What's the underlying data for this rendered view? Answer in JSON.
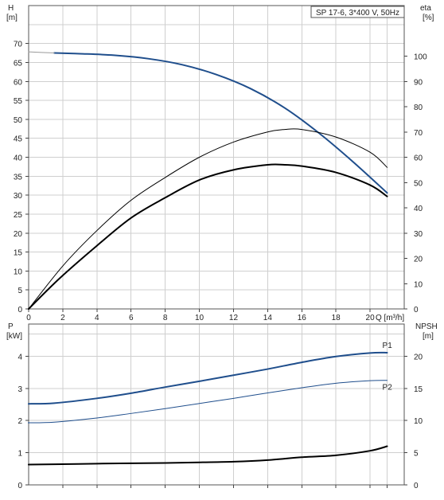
{
  "chart_data": [
    {
      "type": "line",
      "title": "SP 17-6, 3*400 V, 50Hz",
      "xlabel": "Q [m³/h]",
      "ylabel": "H\n[m]",
      "y2label": "eta\n[%]",
      "xlim": [
        0,
        22
      ],
      "ylim": [
        0,
        80
      ],
      "y2lim": [
        0,
        120
      ],
      "x_ticks": [
        0,
        2,
        4,
        6,
        8,
        10,
        12,
        14,
        16,
        18,
        20
      ],
      "y_ticks": [
        0,
        5,
        10,
        15,
        20,
        25,
        30,
        35,
        40,
        45,
        50,
        55,
        60,
        65,
        70
      ],
      "y2_ticks": [
        0,
        10,
        20,
        30,
        40,
        50,
        60,
        70,
        80,
        90,
        100
      ],
      "grid": true,
      "series": [
        {
          "name": "",
          "axis": "left",
          "color": "#1f4e8c",
          "x": [
            1.5,
            3,
            5,
            7,
            9,
            11,
            13,
            15,
            17,
            19,
            21
          ],
          "y": [
            67.5,
            67.3,
            66.9,
            66.0,
            64.4,
            61.8,
            58.1,
            53.0,
            46.4,
            38.8,
            30.6
          ]
        },
        {
          "name": "",
          "axis": "left",
          "color": "#9a9a9a",
          "x": [
            0,
            1.5
          ],
          "y": [
            67.8,
            67.5
          ]
        },
        {
          "name": "",
          "axis": "right",
          "color": "#000000",
          "x": [
            0,
            2,
            4,
            6,
            8,
            10,
            12,
            14,
            15,
            16,
            18,
            20,
            21
          ],
          "y": [
            0,
            17,
            31,
            43,
            52,
            60,
            66,
            70,
            71,
            71,
            68,
            62,
            56
          ]
        },
        {
          "name": "",
          "axis": "right",
          "color": "#000000",
          "x": [
            0,
            1.8,
            4,
            6,
            8,
            10,
            12,
            14,
            15,
            16,
            18,
            20,
            21
          ],
          "y": [
            0,
            12,
            25,
            36,
            44,
            51,
            55,
            57,
            57,
            56.5,
            54,
            49,
            44.5
          ]
        }
      ]
    },
    {
      "type": "line",
      "xlabel": "",
      "ylabel": "P\n[kW]",
      "y2label": "NPSH\n[m]",
      "xlim": [
        0,
        22
      ],
      "ylim": [
        0,
        5
      ],
      "y2lim": [
        0,
        25
      ],
      "y_ticks": [
        0,
        1,
        2,
        3,
        4
      ],
      "y2_ticks": [
        0,
        5,
        10,
        15,
        20
      ],
      "grid": true,
      "series": [
        {
          "name": "P1",
          "axis": "left",
          "color": "#1f4e8c",
          "x": [
            0,
            1.5,
            4,
            6,
            8,
            10,
            12,
            14,
            16,
            18,
            20,
            21
          ],
          "y": [
            2.52,
            2.54,
            2.69,
            2.85,
            3.04,
            3.22,
            3.41,
            3.6,
            3.81,
            3.99,
            4.1,
            4.11
          ]
        },
        {
          "name": "P2",
          "axis": "left",
          "color": "#1f4e8c",
          "x": [
            0,
            1.5,
            4,
            6,
            8,
            10,
            12,
            14,
            16,
            18,
            20,
            21
          ],
          "y": [
            1.93,
            1.95,
            2.08,
            2.22,
            2.37,
            2.53,
            2.69,
            2.86,
            3.02,
            3.16,
            3.24,
            3.25
          ]
        },
        {
          "name": "",
          "axis": "right",
          "color": "#000000",
          "x": [
            0,
            1.5,
            4,
            6,
            8,
            10,
            12,
            14,
            16,
            18,
            20,
            21
          ],
          "y": [
            3.15,
            3.2,
            3.3,
            3.35,
            3.4,
            3.5,
            3.6,
            3.85,
            4.3,
            4.6,
            5.3,
            6.0
          ]
        }
      ]
    }
  ]
}
